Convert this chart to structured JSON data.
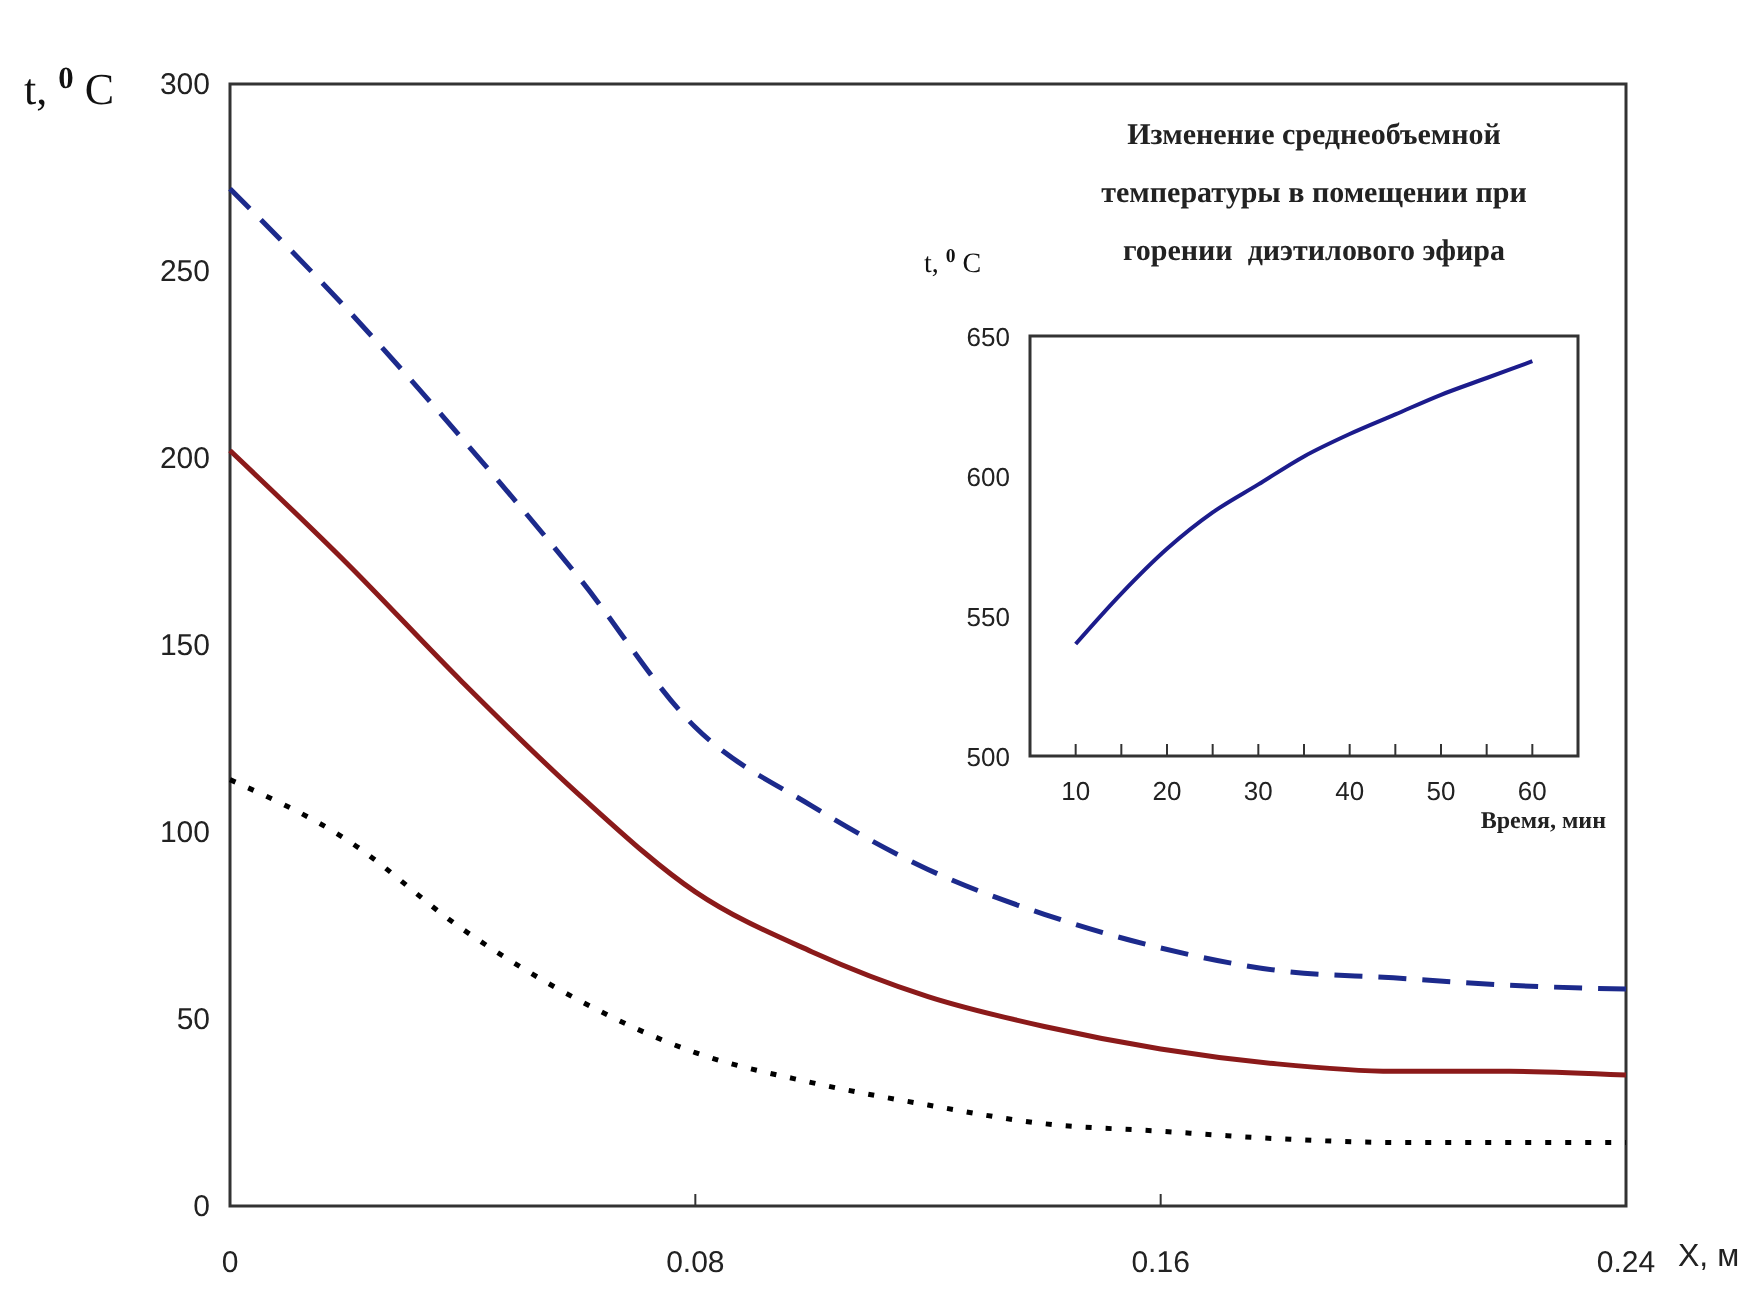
{
  "chart_data": [
    {
      "type": "line",
      "xlabel": "X, м",
      "ylabel": "t, $^{0}$ C",
      "x": [
        0,
        0.02,
        0.04,
        0.06,
        0.08,
        0.1,
        0.12,
        0.14,
        0.16,
        0.18,
        0.2,
        0.22,
        0.24
      ],
      "xlim": [
        0,
        0.24
      ],
      "xticks": [
        0,
        0.08,
        0.16,
        0.24
      ],
      "ylim": [
        0,
        300
      ],
      "yticks": [
        0,
        50,
        100,
        150,
        200,
        250,
        300
      ],
      "series": [
        {
          "color": "#1c2a8c",
          "line_style": "dashed",
          "values": [
            272,
            240,
            205,
            168,
            128,
            107,
            90,
            78,
            69,
            63,
            61,
            59,
            58
          ]
        },
        {
          "color": "#8b1a1a",
          "line_style": "solid",
          "values": [
            202,
            172,
            140,
            110,
            84,
            68,
            56,
            48,
            42,
            38,
            36,
            36,
            35
          ]
        },
        {
          "color": "#000000",
          "line_style": "dotted",
          "values": [
            114,
            98,
            74,
            55,
            41,
            33,
            27,
            22,
            20,
            18,
            17,
            17,
            17
          ]
        }
      ]
    },
    {
      "type": "line",
      "title": "Изменение среднеобъемной\nтемпературы в помещении при\nгорении  диэтилового эфира",
      "xlabel": "Время, мин",
      "ylabel": "t, $^{0}$ C",
      "x": [
        10,
        15,
        20,
        25,
        30,
        35,
        40,
        45,
        50,
        55,
        60
      ],
      "xlim": [
        5,
        65
      ],
      "xticks": [
        10,
        {
          "value": 15,
          "label": null
        },
        20,
        {
          "value": 25,
          "label": null
        },
        30,
        {
          "value": 35,
          "label": null
        },
        40,
        {
          "value": 45,
          "label": null
        },
        50,
        {
          "value": 55,
          "label": null
        },
        60
      ],
      "ylim": [
        500,
        650
      ],
      "yticks": [
        500,
        550,
        600,
        650
      ],
      "series": [
        {
          "color": "#1c1c8c",
          "line_style": "solid",
          "values": [
            540,
            558,
            574,
            587,
            597,
            607,
            615,
            622,
            629,
            635,
            641
          ]
        }
      ]
    }
  ]
}
